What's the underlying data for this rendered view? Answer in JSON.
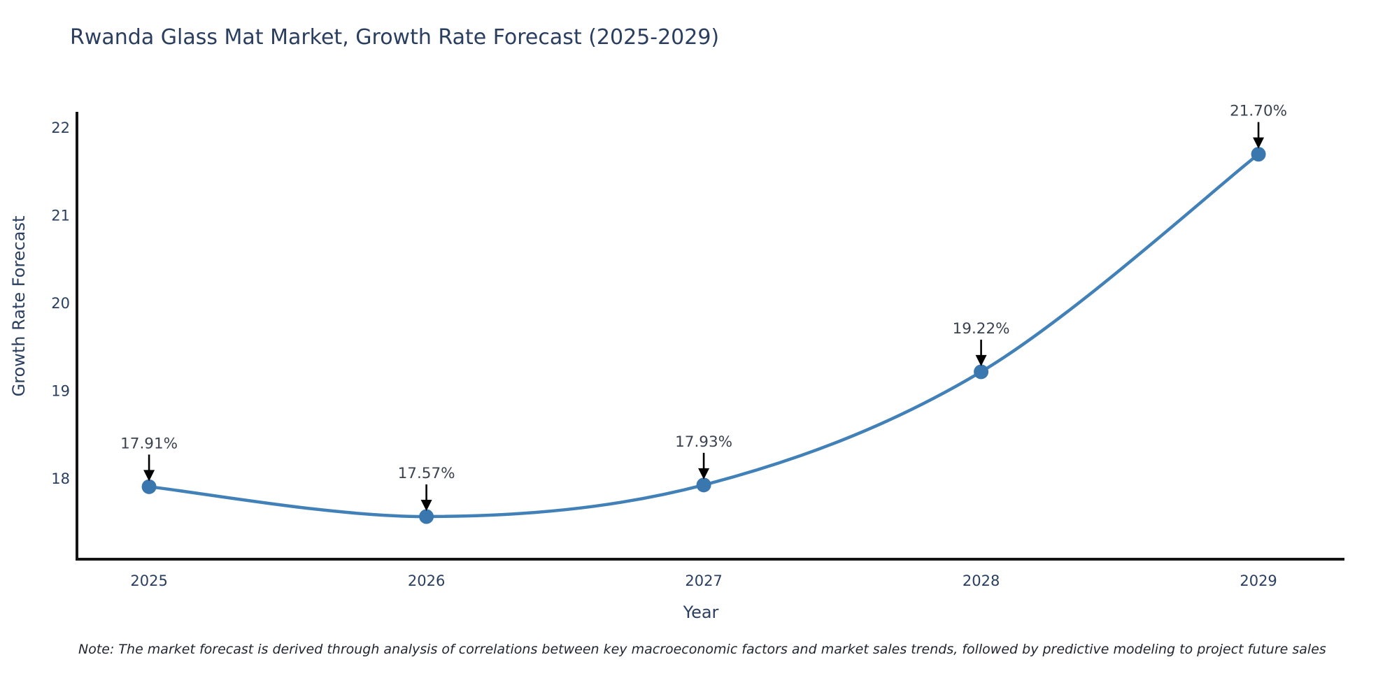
{
  "title": "Rwanda Glass Mat Market, Growth Rate Forecast (2025-2029)",
  "note": "Note: The market forecast is derived through analysis of correlations between key macroeconomic factors and market sales trends, followed by predictive modeling to project future sales",
  "chart_data": {
    "type": "line",
    "title": "Rwanda Glass Mat Market, Growth Rate Forecast (2025-2029)",
    "x": [
      2025,
      2026,
      2027,
      2028,
      2029
    ],
    "series": [
      {
        "name": "Growth Rate Forecast",
        "values": [
          17.91,
          17.57,
          17.93,
          19.22,
          21.7
        ]
      }
    ],
    "point_labels": [
      "17.91%",
      "17.57%",
      "17.93%",
      "19.22%",
      "21.70%"
    ],
    "xlabel": "Year",
    "ylabel": "Growth Rate Forecast",
    "xticks": [
      "2025",
      "2026",
      "2027",
      "2028",
      "2029"
    ],
    "yticks": [
      18,
      19,
      20,
      21,
      22
    ],
    "xlim": [
      2024.74,
      2029.31
    ],
    "ylim": [
      17.084,
      22.183
    ],
    "grid": false,
    "legend": "none",
    "line_shape": "spline",
    "annotations_arrow": "down",
    "colors": {
      "line": "#4181b8",
      "marker": "#3a77af",
      "axis": "#141414",
      "tick_text": "#2a3f5f",
      "annotation_text": "#3b4250",
      "arrow": "#000000",
      "title_text": "#2a3f5f",
      "background": "#ffffff"
    }
  }
}
